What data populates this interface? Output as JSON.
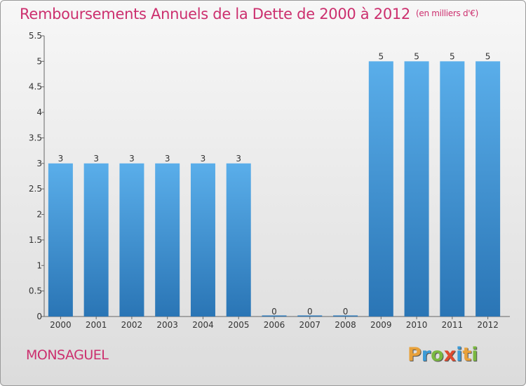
{
  "title": "Remboursements Annuels de la Dette de 2000 à 2012",
  "unit_note": "(en milliers d'€)",
  "commune": "MONSAGUEL",
  "logo": {
    "letters": [
      "P",
      "r",
      "o",
      "x",
      "i",
      "t",
      "i"
    ],
    "colors": [
      "#e8a13a",
      "#3c9bd6",
      "#7ab840",
      "#e04a2f",
      "#3c9bd6",
      "#e8a13a",
      "#7ab840"
    ]
  },
  "chart_data": {
    "type": "bar",
    "title": "Remboursements Annuels de la Dette de 2000 à 2012",
    "categories": [
      "2000",
      "2001",
      "2002",
      "2003",
      "2004",
      "2005",
      "2006",
      "2007",
      "2008",
      "2009",
      "2010",
      "2011",
      "2012"
    ],
    "values": [
      3,
      3,
      3,
      3,
      3,
      3,
      0,
      0,
      0,
      5,
      5,
      5,
      5
    ],
    "value_labels": [
      "3",
      "3",
      "3",
      "3",
      "3",
      "3",
      "0",
      "0",
      "0",
      "5",
      "5",
      "5",
      "5"
    ],
    "ylim": [
      0,
      5.5
    ],
    "yticks": [
      0,
      0.5,
      1,
      1.5,
      2,
      2.5,
      3,
      3.5,
      4,
      4.5,
      5,
      5.5
    ],
    "ytick_labels": [
      "0",
      "0.5",
      "1",
      "1.5",
      "2",
      "2.5",
      "3",
      "3.5",
      "4",
      "4.5",
      "5",
      "5.5"
    ],
    "grid": false,
    "bar_color_top": "#5aaeea",
    "bar_color_bottom": "#2a75b5"
  }
}
